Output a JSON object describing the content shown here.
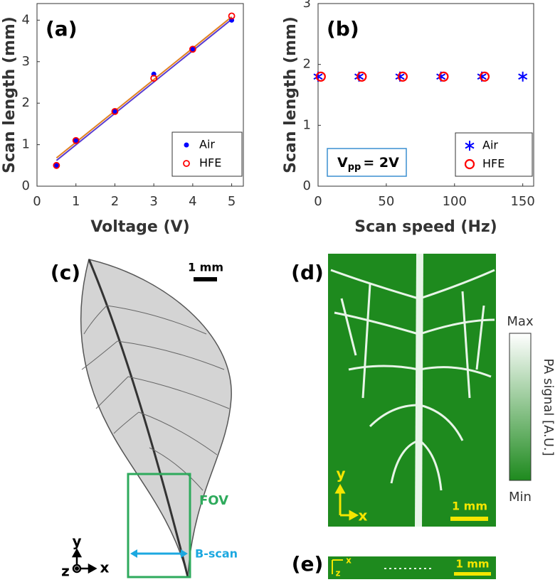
{
  "chart_data": [
    {
      "type": "scatter",
      "title": "(a)",
      "x_label": "Voltage (V)",
      "y_label": "Scan length (mm)",
      "xlim": [
        0,
        5.3
      ],
      "xticks": [
        0,
        1,
        2,
        3,
        4,
        5
      ],
      "ylim": [
        0,
        4.4
      ],
      "yticks": [
        0,
        1,
        2,
        3,
        4
      ],
      "legend": "lower right",
      "series": [
        {
          "name": "Air",
          "color": "#0000ff",
          "marker": "dot",
          "x": [
            0.5,
            1,
            2,
            3,
            4,
            5
          ],
          "values": [
            0.5,
            1.1,
            1.8,
            2.7,
            3.3,
            4.0
          ]
        },
        {
          "name": "HFE",
          "color": "#ff0000",
          "marker": "open-circle",
          "x": [
            0.5,
            1,
            2,
            3,
            4,
            5
          ],
          "values": [
            0.5,
            1.1,
            1.8,
            2.6,
            3.3,
            4.1
          ]
        }
      ],
      "fit_lines": [
        {
          "color": "#e08020",
          "x": [
            0.5,
            5
          ],
          "values": [
            0.68,
            4.08
          ]
        },
        {
          "color": "#5a3cd0",
          "x": [
            0.5,
            5
          ],
          "values": [
            0.62,
            4.02
          ]
        }
      ]
    },
    {
      "type": "scatter",
      "title": "(b)",
      "x_label": "Scan speed (Hz)",
      "y_label": "Scan length (mm)",
      "xlim": [
        0,
        158
      ],
      "xticks": [
        0,
        50,
        100,
        150
      ],
      "ylim": [
        0,
        3
      ],
      "yticks": [
        0,
        1,
        2,
        3
      ],
      "legend": "lower right",
      "annotation": {
        "text": "V",
        "subscript": "pp",
        "suffix": "= 2V"
      },
      "series": [
        {
          "name": "Air",
          "color": "#0000ff",
          "marker": "asterisk",
          "x": [
            0,
            30,
            60,
            90,
            120,
            150
          ],
          "values": [
            1.8,
            1.8,
            1.8,
            1.8,
            1.8,
            1.8
          ]
        },
        {
          "name": "HFE",
          "color": "#ff0000",
          "marker": "big-open-circle",
          "x": [
            2,
            32,
            62,
            92,
            122
          ],
          "values": [
            1.8,
            1.8,
            1.8,
            1.8,
            1.8
          ]
        }
      ]
    }
  ],
  "panels": {
    "c": {
      "label": "(c)",
      "scale": "1 mm",
      "fov": "FOV",
      "bscan": "B-scan",
      "axis_y": "y",
      "axis_x": "x",
      "axis_z": "z"
    },
    "d": {
      "label": "(d)",
      "scale": "1 mm",
      "axis_y": "y",
      "axis_x": "x",
      "colorbar_max": "Max",
      "colorbar_min": "Min",
      "colorbar_label": "PA signal [A.U.]"
    },
    "e": {
      "label": "(e)",
      "scale": "1 mm",
      "axis_x": "x",
      "axis_z": "z"
    }
  }
}
